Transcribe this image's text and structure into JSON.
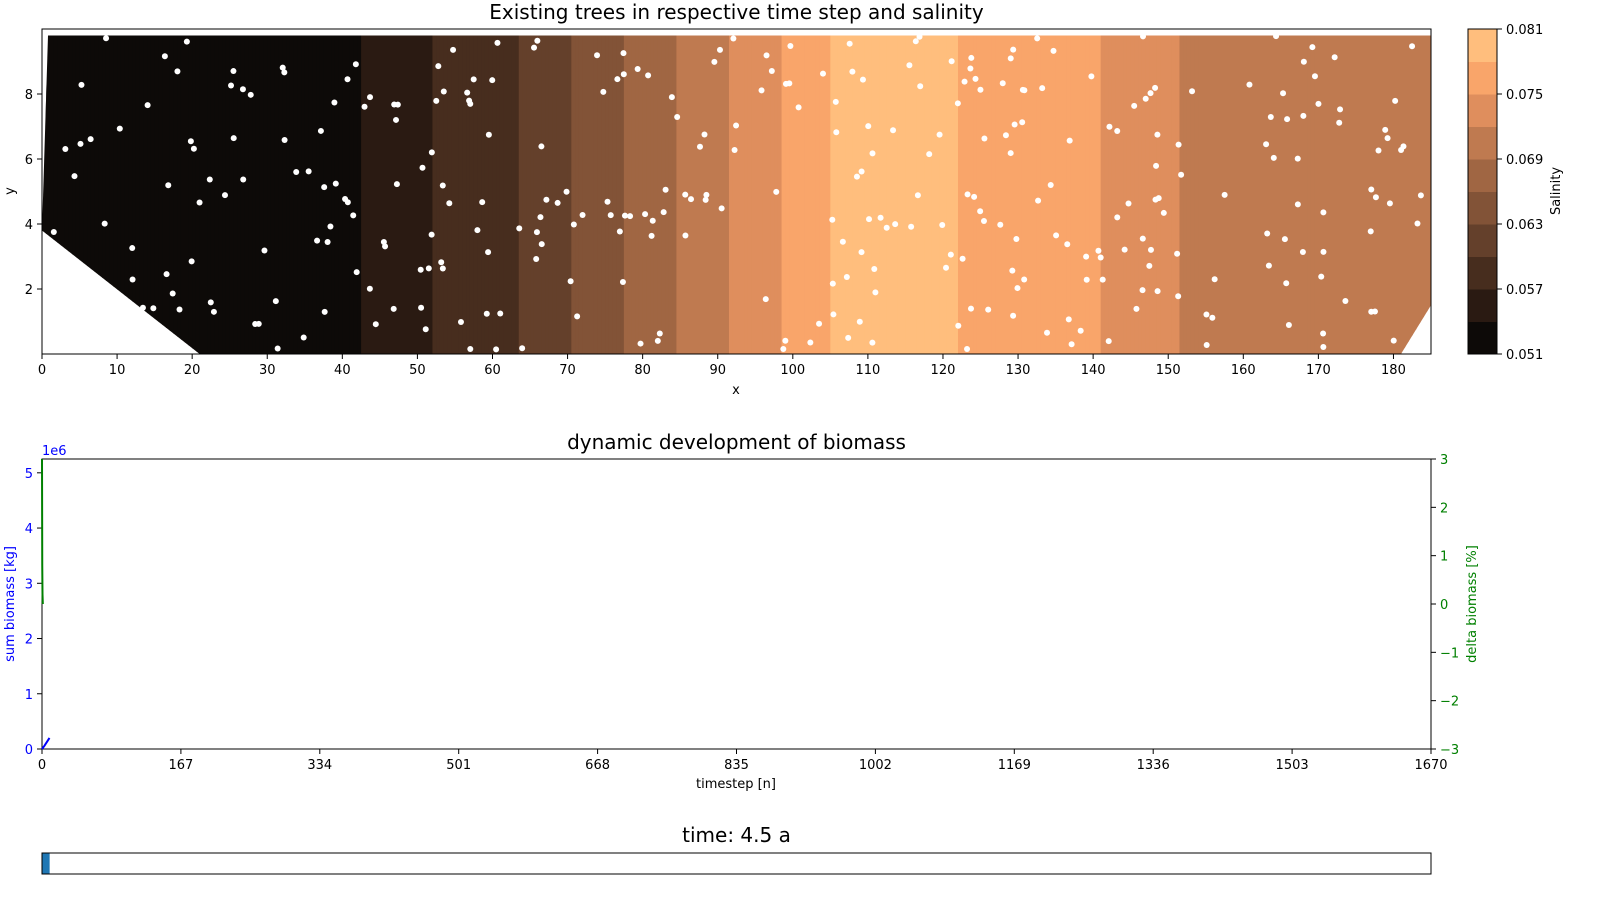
{
  "chart_data": [
    {
      "type": "scatter",
      "title": "Existing trees in respective time step and salinity",
      "xlabel": "x",
      "ylabel": "y",
      "xlim": [
        0,
        185
      ],
      "ylim": [
        0,
        10
      ],
      "xticks": [
        0,
        10,
        20,
        30,
        40,
        50,
        60,
        70,
        80,
        90,
        100,
        110,
        120,
        130,
        140,
        150,
        160,
        170,
        180
      ],
      "yticks": [
        2,
        4,
        6,
        8
      ],
      "background": {
        "type": "filled_contour",
        "variable": "Salinity",
        "levels": [
          0.051,
          0.054,
          0.057,
          0.06,
          0.063,
          0.066,
          0.069,
          0.072,
          0.075,
          0.078,
          0.081
        ],
        "colors": [
          "#0d0a08",
          "#2a1a12",
          "#472d1e",
          "#64402b",
          "#825337",
          "#a06643",
          "#bf7a50",
          "#df8e5d",
          "#f9a56a",
          "#ffbe7d"
        ],
        "profile_x": [
          0,
          40,
          44,
          60,
          67,
          74,
          81,
          88,
          95,
          102,
          108,
          136,
          146,
          157,
          185
        ],
        "profile_salinity": [
          0.0515,
          0.0515,
          0.0555,
          0.0585,
          0.0615,
          0.0645,
          0.0675,
          0.0705,
          0.0735,
          0.0765,
          0.0795,
          0.0765,
          0.0735,
          0.0705,
          0.0705
        ]
      },
      "points_label": "trees",
      "points_color": "#ffffff",
      "colorbar": {
        "label": "Salinity",
        "ticks": [
          "0.051",
          "0.057",
          "0.063",
          "0.069",
          "0.075",
          "0.081"
        ]
      }
    },
    {
      "type": "line",
      "title": "dynamic development of biomass",
      "xlabel": "timestep [n]",
      "xticks": [
        0,
        167,
        334,
        501,
        668,
        835,
        1002,
        1169,
        1336,
        1503,
        1670
      ],
      "xlim": [
        0,
        1670
      ],
      "grid": false,
      "y_left": {
        "label": "sum biomass [kg]",
        "color": "#0000ff",
        "scale_label": "1e6",
        "ticks": [
          0,
          1,
          2,
          3,
          4,
          5
        ],
        "ylim": [
          0,
          5.25
        ]
      },
      "y_right": {
        "label": "delta biomass [%]",
        "color": "#008000",
        "ticks": [
          "3",
          "2",
          "1",
          "0",
          "−1",
          "−2",
          "−3"
        ],
        "ylim": [
          -3,
          3
        ]
      },
      "series": [
        {
          "axis": "left",
          "color": "#0000ff",
          "x": [
            0,
            3,
            6,
            9
          ],
          "y": [
            0,
            0.06,
            0.13,
            0.2
          ]
        },
        {
          "axis": "right",
          "color": "#008000",
          "x": [
            0,
            0.3,
            0.6,
            1
          ],
          "y": [
            3,
            0.8,
            0.2,
            0
          ]
        }
      ]
    },
    {
      "type": "progress",
      "title": "time: 4.5 a",
      "progress_fraction": 0.0055,
      "bar_color": "#1f77b4"
    }
  ]
}
